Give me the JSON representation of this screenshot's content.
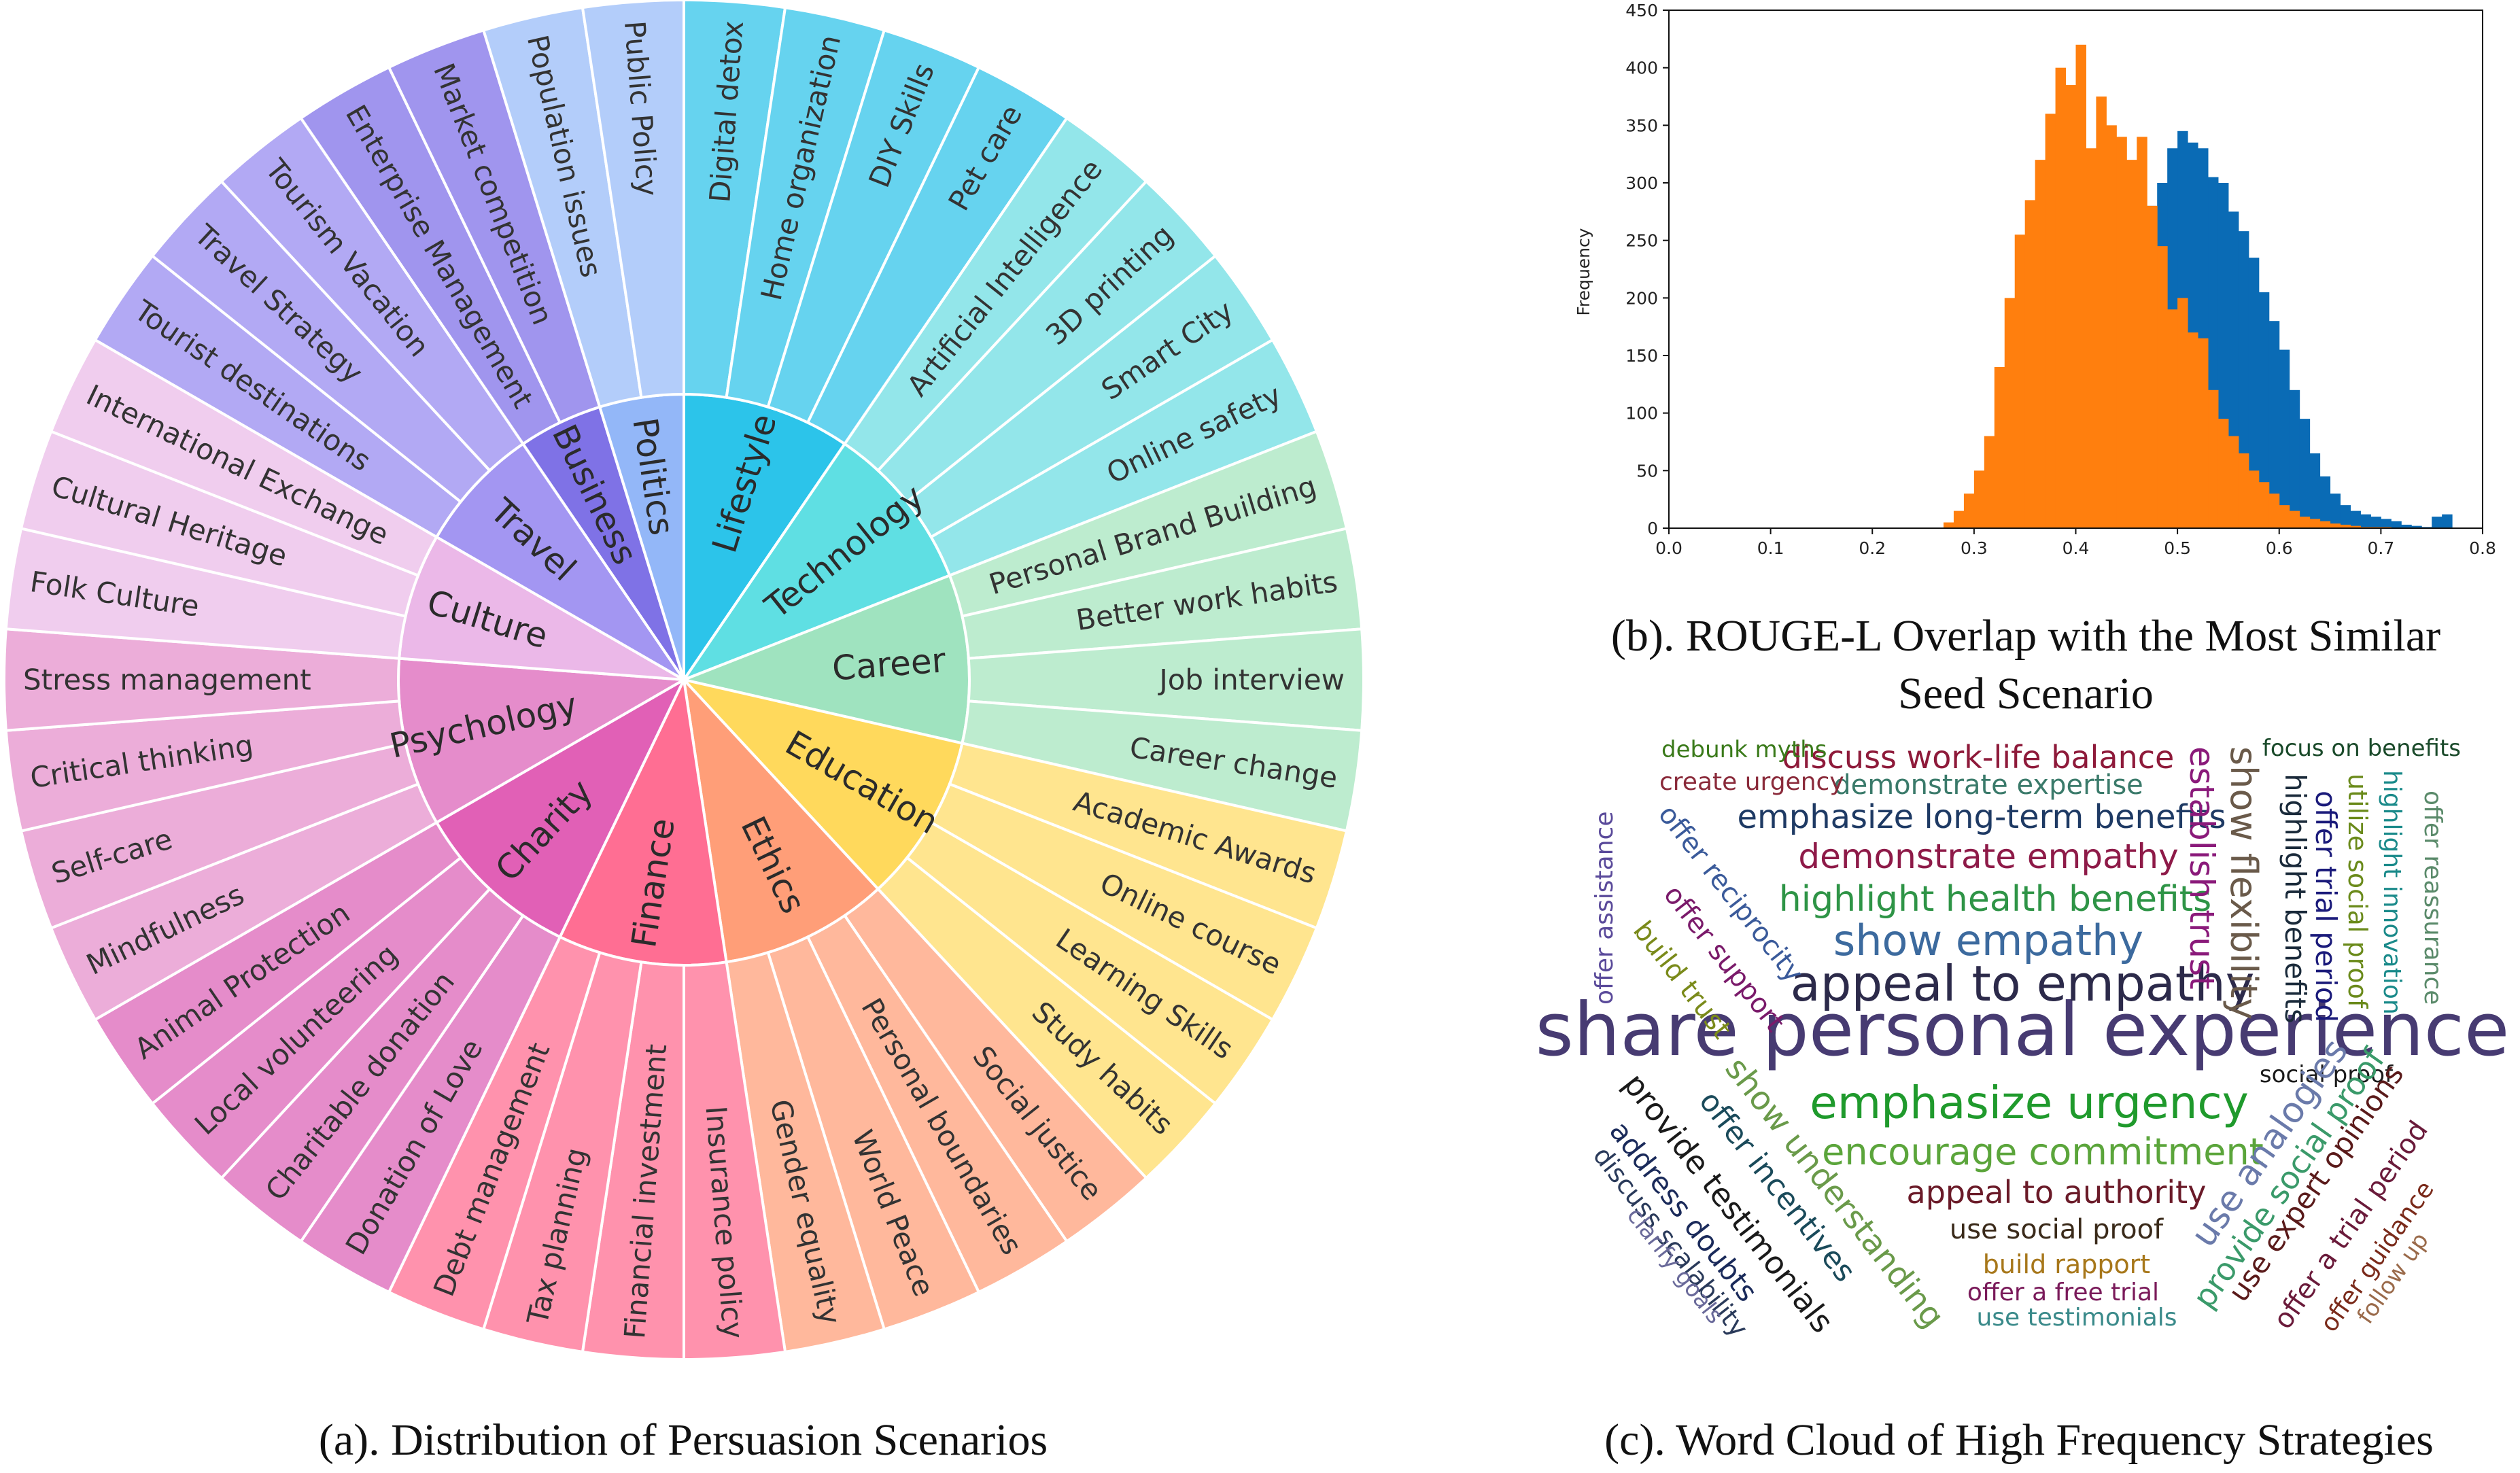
{
  "captions": {
    "a": "(a). Distribution of Persuasion Scenarios",
    "b_line1": "(b). ROUGE-L Overlap with the Most Similar",
    "b_line2": "Seed Scenario",
    "c": "(c). Word Cloud of High Frequency Strategies"
  },
  "chart_data": [
    {
      "type": "sunburst",
      "categories": [
        {
          "name": "Lifestyle",
          "color": "#2cc4ea",
          "leaf_color": "#66d3ef",
          "children": [
            "Digital detox",
            "Home organization",
            "DIY Skills",
            "Pet care"
          ]
        },
        {
          "name": "Technology",
          "color": "#5fdfe3",
          "leaf_color": "#93e6ea",
          "children": [
            "Artificial Intelligence",
            "3D printing",
            "Smart City",
            "Online safety"
          ]
        },
        {
          "name": "Career",
          "color": "#9fe3bf",
          "leaf_color": "#bdeccf",
          "children": [
            "Personal Brand Building",
            "Better work habits",
            "Job interview",
            "Career change"
          ]
        },
        {
          "name": "Education",
          "color": "#ffd95c",
          "leaf_color": "#ffe58f",
          "children": [
            "Academic Awards",
            "Online course",
            "Learning Skills",
            "Study habits"
          ]
        },
        {
          "name": "Ethics",
          "color": "#ff9e78",
          "leaf_color": "#ffb89c",
          "children": [
            "Social justice",
            "Personal boundaries",
            "World Peace",
            "Gender equality"
          ]
        },
        {
          "name": "Finance",
          "color": "#ff6e93",
          "leaf_color": "#ff92ad",
          "children": [
            "Insurance policy",
            "Financial investment",
            "Tax planning",
            "Debt management"
          ]
        },
        {
          "name": "Charity",
          "color": "#e160b6",
          "leaf_color": "#e58cca",
          "children": [
            "Donation of Love",
            "Charitable donation",
            "Local volunteering",
            "Animal Protection"
          ]
        },
        {
          "name": "Psychology",
          "color": "#e58ccb",
          "leaf_color": "#ecadd9",
          "children": [
            "Mindfulness",
            "Self-care",
            "Critical thinking",
            "Stress management"
          ]
        },
        {
          "name": "Culture",
          "color": "#ebb8e8",
          "leaf_color": "#f0cdee",
          "children": [
            "Folk Culture",
            "Cultural Heritage",
            "International Exchange"
          ]
        },
        {
          "name": "Travel",
          "color": "#a396f2",
          "leaf_color": "#b2a9f4",
          "children": [
            "Tourist destinations",
            "Travel Strategy",
            "Tourism Vacation"
          ]
        },
        {
          "name": "Business",
          "color": "#7f72e6",
          "leaf_color": "#a095ee",
          "children": [
            "Enterprise Management",
            "Market competition"
          ]
        },
        {
          "name": "Politics",
          "color": "#93b7f8",
          "leaf_color": "#b3cdfa",
          "children": [
            "Population issues",
            "Public Policy"
          ]
        }
      ]
    },
    {
      "type": "histogram",
      "xlabel": "",
      "ylabel": "Frequency",
      "xlim": [
        0.0,
        0.8
      ],
      "ylim": [
        0,
        450
      ],
      "xticks": [
        "0.0",
        "0.1",
        "0.2",
        "0.3",
        "0.4",
        "0.5",
        "0.6",
        "0.7",
        "0.8"
      ],
      "yticks": [
        "0",
        "50",
        "100",
        "150",
        "200",
        "250",
        "300",
        "350",
        "400",
        "450"
      ],
      "bin_start": 0.27,
      "bin_width": 0.01,
      "series": [
        {
          "color": "#0a6bb5",
          "values": [
            1,
            3,
            6,
            10,
            18,
            28,
            45,
            70,
            95,
            120,
            150,
            180,
            205,
            230,
            250,
            260,
            258,
            270,
            265,
            275,
            280,
            300,
            330,
            345,
            335,
            330,
            305,
            300,
            275,
            258,
            235,
            205,
            180,
            155,
            120,
            95,
            65,
            45,
            30,
            20,
            15,
            12,
            10,
            8,
            6,
            3,
            2,
            1,
            10,
            12
          ]
        },
        {
          "color": "#ff7f0e",
          "values": [
            5,
            15,
            30,
            50,
            80,
            140,
            200,
            255,
            285,
            320,
            360,
            400,
            385,
            420,
            330,
            375,
            350,
            340,
            320,
            340,
            280,
            245,
            190,
            200,
            170,
            165,
            120,
            95,
            80,
            65,
            50,
            40,
            30,
            20,
            15,
            10,
            8,
            6,
            4,
            3,
            2,
            1,
            1,
            1,
            0,
            0,
            0,
            0,
            0,
            0
          ]
        }
      ]
    },
    {
      "type": "wordcloud",
      "words": [
        {
          "text": "share personal experience",
          "color": "#473b72"
        },
        {
          "text": "appeal to empathy",
          "color": "#2c2a4a"
        },
        {
          "text": "emphasize urgency",
          "color": "#1f9a2c"
        },
        {
          "text": "show empathy",
          "color": "#3c6a9e"
        },
        {
          "text": "highlight health benefits",
          "color": "#2e9446"
        },
        {
          "text": "encourage commitment",
          "color": "#5ba53b"
        },
        {
          "text": "demonstrate empathy",
          "color": "#8e1a48"
        },
        {
          "text": "emphasize long-term benefits",
          "color": "#1e3a64"
        },
        {
          "text": "discuss work-life balance",
          "color": "#8e1a3a"
        },
        {
          "text": "demonstrate expertise",
          "color": "#3a7a6a"
        },
        {
          "text": "appeal to authority",
          "color": "#6a1a28"
        },
        {
          "text": "use social proof",
          "color": "#3a2a1a"
        },
        {
          "text": "build rapport",
          "color": "#a7771a"
        },
        {
          "text": "offer a free trial",
          "color": "#7a1a5a"
        },
        {
          "text": "use testimonials",
          "color": "#3a8a8a"
        },
        {
          "text": "debunk myths",
          "color": "#3a7a1a"
        },
        {
          "text": "create urgency",
          "color": "#8a2a3a"
        },
        {
          "text": "focus on benefits",
          "color": "#1a4a2a"
        },
        {
          "text": "social proof",
          "color": "#1a1a1a"
        },
        {
          "text": "show flexibility",
          "color": "#6a5a4a"
        },
        {
          "text": "establish trust",
          "color": "#8a1a7a"
        },
        {
          "text": "highlight benefits",
          "color": "#1a2a3a"
        },
        {
          "text": "offer trial period",
          "color": "#1a1a7a"
        },
        {
          "text": "utilize social proof",
          "color": "#6a8a1a"
        },
        {
          "text": "highlight innovation",
          "color": "#1a8a8a"
        },
        {
          "text": "offer reassurance",
          "color": "#5a8a6a"
        },
        {
          "text": "offer assistance",
          "color": "#5a4a9a"
        },
        {
          "text": "offer reciprocity",
          "color": "#3a5a9a"
        },
        {
          "text": "offer support",
          "color": "#7a1a6a"
        },
        {
          "text": "build trust",
          "color": "#7a8a1a"
        },
        {
          "text": "show understanding",
          "color": "#6a9a4a"
        },
        {
          "text": "offer incentives",
          "color": "#1a4a5a"
        },
        {
          "text": "provide testimonials",
          "color": "#1a1a1a"
        },
        {
          "text": "address doubts",
          "color": "#1a2a5a"
        },
        {
          "text": "discuss scalability",
          "color": "#2a3a5a"
        },
        {
          "text": "clarify goals",
          "color": "#6a6a9a"
        },
        {
          "text": "use analogies",
          "color": "#6a7aaa"
        },
        {
          "text": "provide social proof",
          "color": "#3a9a6a"
        },
        {
          "text": "use expert opinions",
          "color": "#5a1a1a"
        },
        {
          "text": "offer a trial period",
          "color": "#6a1a3a"
        },
        {
          "text": "offer guidance",
          "color": "#7a2a1a"
        },
        {
          "text": "follow up",
          "color": "#9a6a4a"
        }
      ]
    }
  ]
}
